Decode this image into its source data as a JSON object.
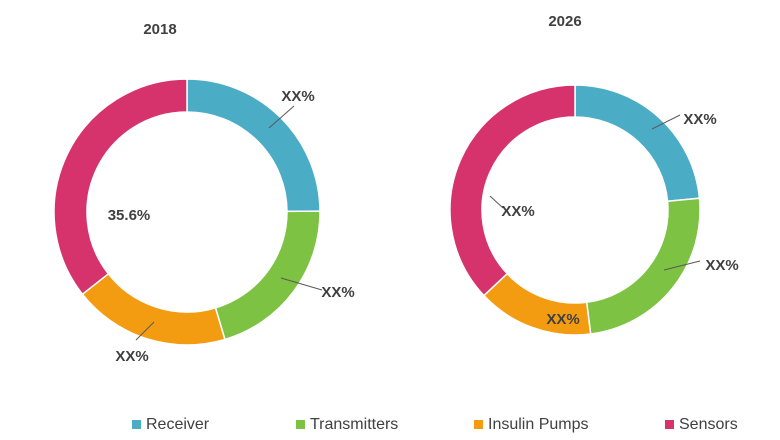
{
  "chart_data": [
    {
      "type": "pie",
      "title": "2018",
      "categories": [
        "Receiver",
        "Transmitters",
        "Insulin Pumps",
        "Sensors"
      ],
      "values": [
        24.9,
        20.5,
        19.0,
        35.6
      ],
      "data_labels": [
        "XX%",
        "XX%",
        "XX%",
        "35.6%"
      ],
      "donut": true
    },
    {
      "type": "pie",
      "title": "2026",
      "categories": [
        "Receiver",
        "Transmitters",
        "Insulin Pumps",
        "Sensors"
      ],
      "values": [
        23.5,
        24.5,
        15.0,
        37.0
      ],
      "data_labels": [
        "XX%",
        "XX%",
        "XX%",
        "XX%"
      ],
      "donut": true
    }
  ],
  "legend": {
    "placement": "bottom",
    "items": [
      {
        "label": "Receiver",
        "color": "#4BACC6"
      },
      {
        "label": "Transmitters",
        "color": "#7DC242"
      },
      {
        "label": "Insulin Pumps",
        "color": "#F39C12"
      },
      {
        "label": "Sensors",
        "color": "#D6336C"
      }
    ]
  }
}
